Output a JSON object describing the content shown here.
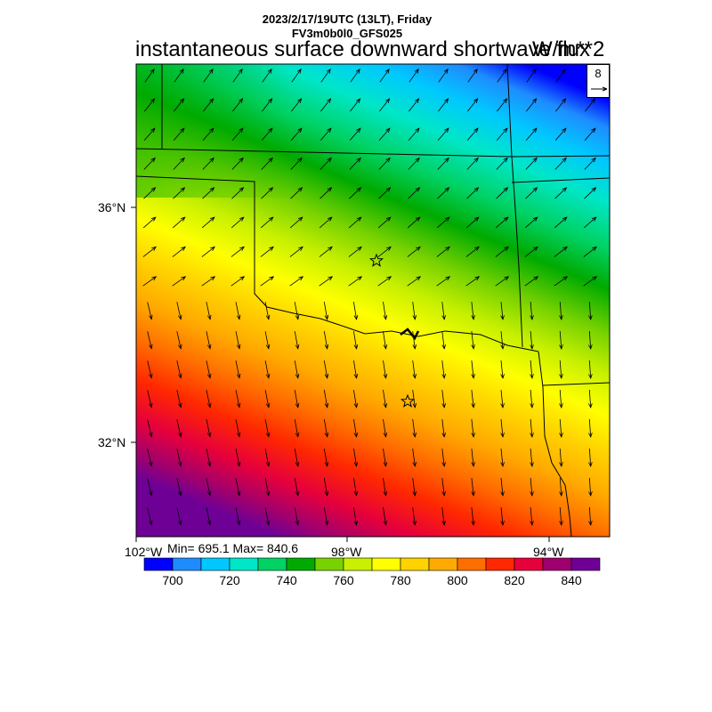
{
  "header": {
    "line1": "2023/2/17/19UTC (13LT), Friday",
    "line2": "FV3m0b0l0_GFS025"
  },
  "title": "instantaneous surface downward shortwave flux",
  "units": "W/m**2",
  "stats": "Min= 695.1 Max= 840.6",
  "vector_reference": "8",
  "axes": {
    "lat_labels": [
      "36°N",
      "32°N"
    ],
    "lon_labels": [
      "102°W",
      "98°W",
      "94°W"
    ]
  },
  "colorbar": {
    "colors": [
      "#0000ff",
      "#1e8cff",
      "#00c8ff",
      "#00e6c8",
      "#00d264",
      "#00aa00",
      "#78d200",
      "#c8f000",
      "#ffff00",
      "#ffd200",
      "#ffaa00",
      "#ff6e00",
      "#ff2800",
      "#e6003c",
      "#a0006e",
      "#6e0096"
    ],
    "labels": [
      "700",
      "720",
      "740",
      "760",
      "780",
      "800",
      "820",
      "840"
    ]
  },
  "field_range": {
    "min": 695.1,
    "max": 840.6
  },
  "markers": [
    "star",
    "star"
  ]
}
